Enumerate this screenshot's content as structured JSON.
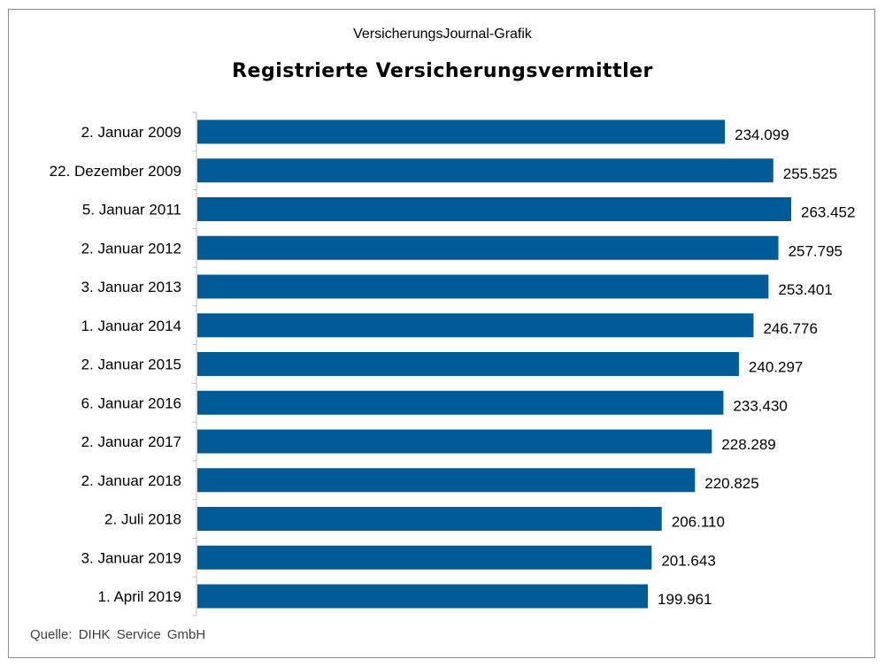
{
  "header": {
    "source_line": "VersicherungsJournal-Grafik"
  },
  "footer": {
    "credit": "Quelle: DIHK Service GmbH"
  },
  "chart_data": {
    "type": "bar",
    "orientation": "horizontal",
    "title": "Registrierte Versicherungsvermittler",
    "xlabel": "",
    "ylabel": "",
    "grid": false,
    "legend": "none",
    "bar_color": "#005b97",
    "xlim": [
      0,
      263452
    ],
    "categories": [
      "2. Januar 2009",
      "22. Dezember 2009",
      "5. Januar 2011",
      "2. Januar 2012",
      "3. Januar 2013",
      "1. Januar 2014",
      "2. Januar 2015",
      "6. Januar 2016",
      "2. Januar 2017",
      "2. Januar 2018",
      "2. Juli 2018",
      "3. Januar 2019",
      "1. April 2019"
    ],
    "values": [
      234099,
      255525,
      263452,
      257795,
      253401,
      246776,
      240297,
      233430,
      228289,
      220825,
      206110,
      201643,
      199961
    ],
    "value_labels": [
      "234.099",
      "255.525",
      "263.452",
      "257.795",
      "253.401",
      "246.776",
      "240.297",
      "233.430",
      "228.289",
      "220.825",
      "206.110",
      "201.643",
      "199.961"
    ]
  }
}
